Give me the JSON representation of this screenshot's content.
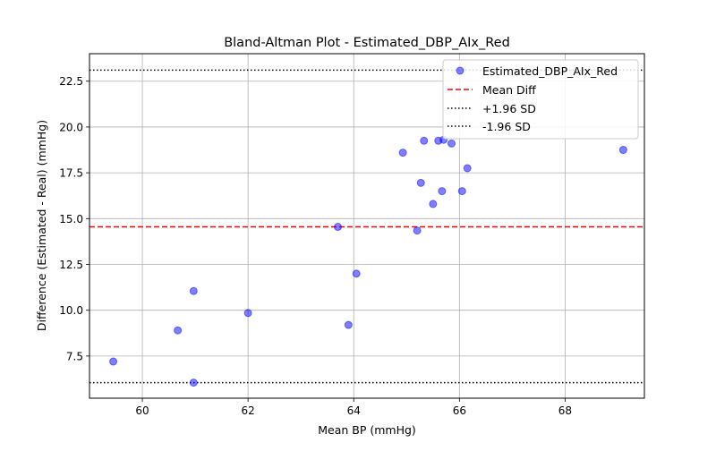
{
  "chart_data": {
    "type": "scatter",
    "title": "Bland-Altman Plot - Estimated_DBP_AIx_Red",
    "xlabel": "Mean BP (mmHg)",
    "ylabel": "Difference (Estimated - Real) (mmHg)",
    "xlim": [
      59.0,
      69.5
    ],
    "ylim": [
      5.2,
      24.0
    ],
    "xticks": [
      60,
      62,
      64,
      66,
      68
    ],
    "yticks": [
      7.5,
      10.0,
      12.5,
      15.0,
      17.5,
      20.0,
      22.5
    ],
    "xtick_labels": [
      "60",
      "62",
      "64",
      "66",
      "68"
    ],
    "ytick_labels": [
      "7.5",
      "10.0",
      "12.5",
      "15.0",
      "17.5",
      "20.0",
      "22.5"
    ],
    "grid": true,
    "legend_position": "top-right",
    "series": [
      {
        "name": "Estimated_DBP_AIx_Red",
        "color": "#0000ff",
        "points": [
          {
            "x": 59.45,
            "y": 7.2
          },
          {
            "x": 60.67,
            "y": 8.9
          },
          {
            "x": 60.97,
            "y": 11.05
          },
          {
            "x": 60.97,
            "y": 6.05
          },
          {
            "x": 62.0,
            "y": 9.85
          },
          {
            "x": 63.7,
            "y": 14.55
          },
          {
            "x": 63.9,
            "y": 9.2
          },
          {
            "x": 64.05,
            "y": 12.0
          },
          {
            "x": 64.93,
            "y": 18.6
          },
          {
            "x": 65.2,
            "y": 14.35
          },
          {
            "x": 65.27,
            "y": 16.95
          },
          {
            "x": 65.33,
            "y": 19.25
          },
          {
            "x": 65.5,
            "y": 15.8
          },
          {
            "x": 65.6,
            "y": 19.25
          },
          {
            "x": 65.67,
            "y": 16.5
          },
          {
            "x": 65.7,
            "y": 19.3
          },
          {
            "x": 65.85,
            "y": 19.1
          },
          {
            "x": 66.05,
            "y": 16.5
          },
          {
            "x": 66.15,
            "y": 17.75
          },
          {
            "x": 69.1,
            "y": 18.75
          }
        ]
      }
    ],
    "reference_lines": [
      {
        "name": "Mean Diff",
        "y": 14.55,
        "color": "#ff0000",
        "style": "dashed"
      },
      {
        "name": "+1.96 SD",
        "y": 23.1,
        "color": "#000000",
        "style": "dotted"
      },
      {
        "name": "-1.96 SD",
        "y": 6.05,
        "color": "#000000",
        "style": "dotted"
      }
    ],
    "legend": [
      "Estimated_DBP_AIx_Red",
      "Mean Diff",
      "+1.96 SD",
      "-1.96 SD"
    ]
  }
}
